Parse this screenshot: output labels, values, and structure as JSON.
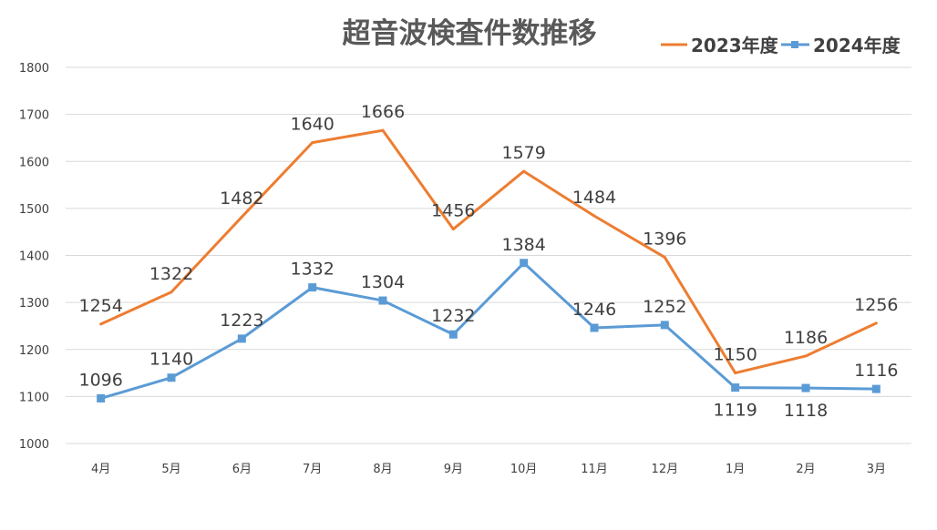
{
  "chart_data": {
    "type": "line",
    "title": "超音波検査件数推移",
    "categories": [
      "4月",
      "5月",
      "6月",
      "7月",
      "8月",
      "9月",
      "10月",
      "11月",
      "12月",
      "1月",
      "2月",
      "3月"
    ],
    "series": [
      {
        "name": "2023年度",
        "color": "#ed7d31",
        "marker": "none",
        "values": [
          1254,
          1322,
          1482,
          1640,
          1666,
          1456,
          1579,
          1484,
          1396,
          1150,
          1186,
          1256
        ],
        "label_position": [
          "above",
          "above",
          "above",
          "above",
          "above",
          "above",
          "above",
          "above",
          "above",
          "above",
          "above",
          "above"
        ]
      },
      {
        "name": "2024年度",
        "color": "#5b9bd5",
        "marker": "square",
        "values": [
          1096,
          1140,
          1223,
          1332,
          1304,
          1232,
          1384,
          1246,
          1252,
          1119,
          1118,
          1116
        ],
        "label_position": [
          "above",
          "above",
          "above",
          "above",
          "above",
          "above",
          "above",
          "above",
          "above",
          "below",
          "below",
          "above"
        ]
      }
    ],
    "ylim": [
      1000,
      1800
    ],
    "yticks": [
      1000,
      1100,
      1200,
      1300,
      1400,
      1500,
      1600,
      1700,
      1800
    ],
    "grid": true,
    "legend": "top-right"
  }
}
